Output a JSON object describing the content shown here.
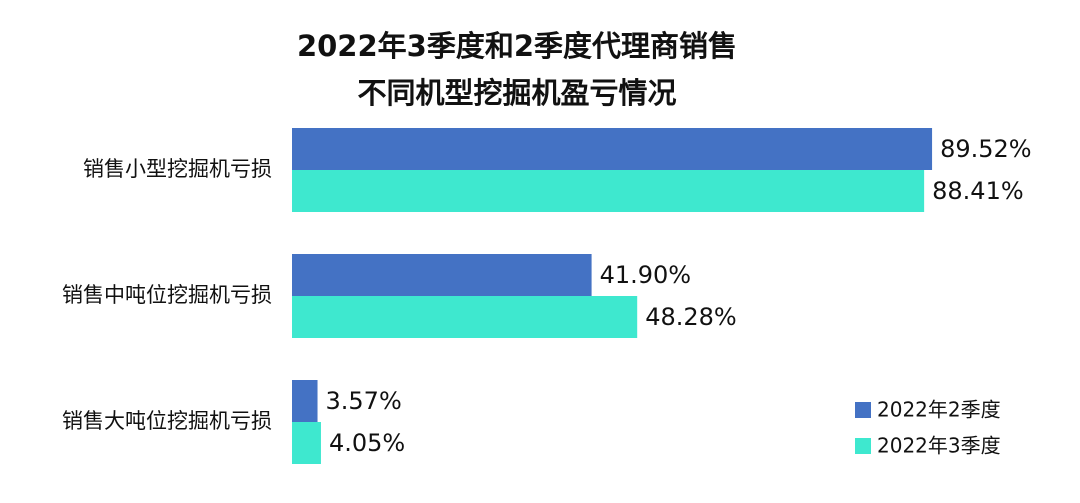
{
  "chart_data": {
    "type": "barh",
    "title": [
      "2022年3季度和2季度代理商销售",
      "不同机型挖掘机盈亏情况"
    ],
    "categories": [
      "销售小型挖掘机亏损",
      "销售中吨位挖掘机亏损",
      "销售大吨位挖掘机亏损"
    ],
    "series": [
      {
        "name": "2022年2季度",
        "color": "#4472c4",
        "values": [
          89.52,
          41.9,
          3.57
        ],
        "value_labels": [
          "89.52%",
          "41.90%",
          "3.57%"
        ]
      },
      {
        "name": "2022年3季度",
        "color": "#3ee8cf",
        "values": [
          88.41,
          48.28,
          4.05
        ],
        "value_labels": [
          "88.41%",
          "48.28%",
          "4.05%"
        ]
      }
    ],
    "legend": "lower right"
  }
}
